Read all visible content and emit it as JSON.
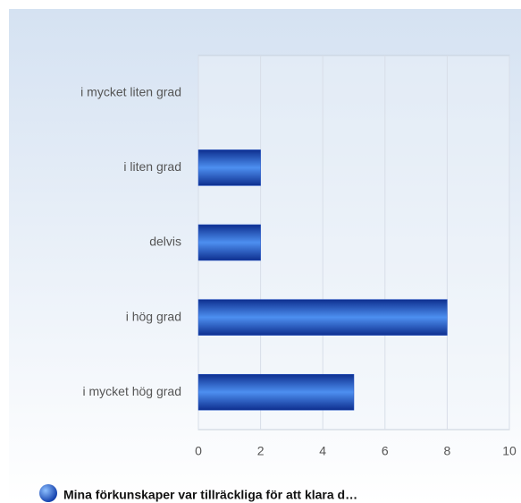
{
  "chart_data": {
    "type": "bar",
    "orientation": "horizontal",
    "categories": [
      "i mycket liten grad",
      "i liten grad",
      "delvis",
      "i hög grad",
      "i mycket hög grad"
    ],
    "series": [
      {
        "name": "Mina förkunskaper var tillräckliga för att klara d…",
        "color": "#1f4fc4",
        "values": [
          0,
          2,
          2,
          8,
          5
        ]
      }
    ],
    "xlim": [
      0,
      10
    ],
    "xticks": [
      0,
      2,
      4,
      6,
      8,
      10
    ],
    "grid": true,
    "legend": "bottom"
  }
}
